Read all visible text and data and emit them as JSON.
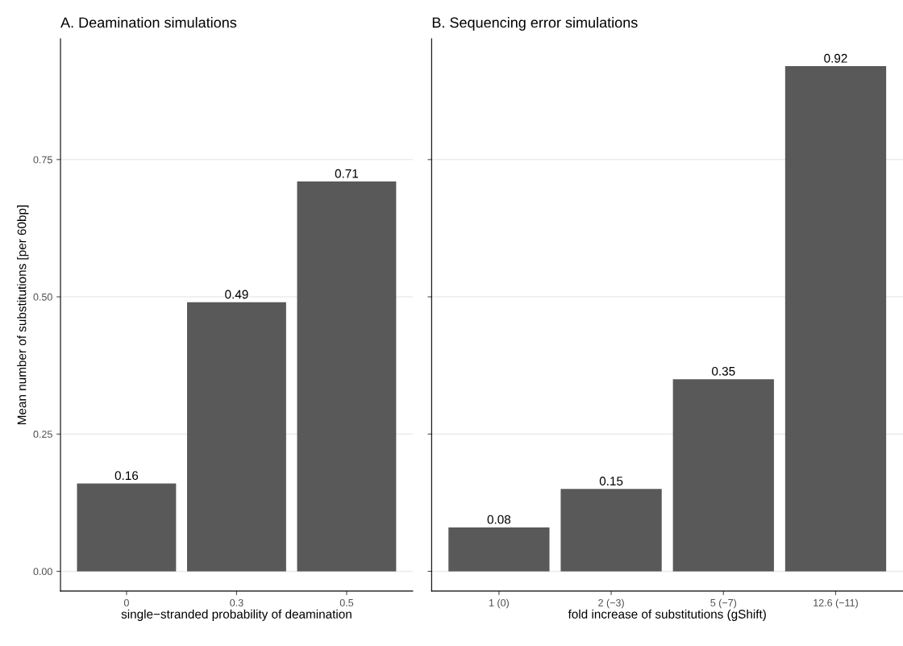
{
  "chart_data": [
    {
      "type": "bar",
      "title": "A. Deamination simulations",
      "xlabel": "single−stranded probability of deamination",
      "ylabel": "Mean number of substitutions [per 60bp]",
      "categories": [
        "0",
        "0.3",
        "0.5"
      ],
      "values": [
        0.16,
        0.49,
        0.71
      ],
      "color": "#595959",
      "ylim": [
        -0.036,
        0.97
      ],
      "yticks": [
        {
          "value": 0,
          "label": "0.00"
        },
        {
          "value": 0.25,
          "label": "0.25"
        },
        {
          "value": 0.5,
          "label": "0.50"
        },
        {
          "value": 0.75,
          "label": "0.75"
        }
      ],
      "grid": "y",
      "data_labels": true
    },
    {
      "type": "bar",
      "title": "B. Sequencing error simulations",
      "xlabel": "fold increase of substitutions (gShift)",
      "categories": [
        "1 (0)",
        "2 (−3)",
        "5 (−7)",
        "12.6 (−11)"
      ],
      "values": [
        0.08,
        0.15,
        0.35,
        0.92
      ],
      "color": "#595959",
      "ylim": [
        -0.036,
        0.97
      ],
      "yticks": [
        {
          "value": 0,
          "label": null
        },
        {
          "value": 0.25,
          "label": null
        },
        {
          "value": 0.5,
          "label": null
        },
        {
          "value": 0.75,
          "label": null
        }
      ],
      "grid": "y",
      "data_labels": true,
      "tick_labels": "x"
    }
  ]
}
